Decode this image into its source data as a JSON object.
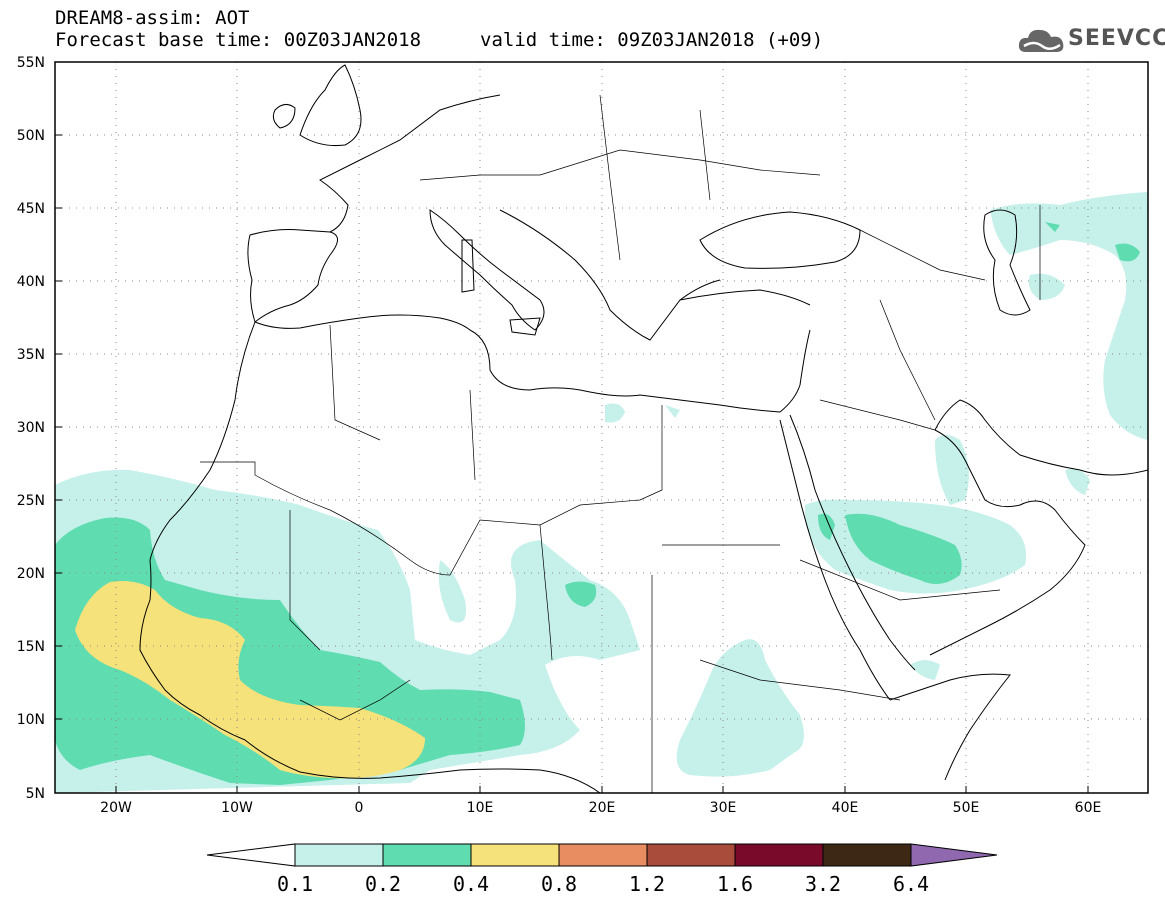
{
  "title": {
    "line1": "DREAM8-assim: AOT",
    "line2_left": "Forecast base time: 00Z03JAN2018",
    "line2_right": "valid time: 09Z03JAN2018 (+09)"
  },
  "logo": {
    "text": "SEEVCCC",
    "icon": "cloud-logo-icon"
  },
  "map": {
    "variable": "AOT",
    "lat_labels": [
      "55N",
      "50N",
      "45N",
      "40N",
      "35N",
      "30N",
      "25N",
      "20N",
      "15N",
      "10N",
      "5N"
    ],
    "lon_labels": [
      "20W",
      "10W",
      "0",
      "10E",
      "20E",
      "30E",
      "40E",
      "50E",
      "60E"
    ],
    "lon_range": [
      -25,
      65
    ],
    "lat_range": [
      5,
      55
    ],
    "grid": "dotted"
  },
  "colorbar": {
    "labels": [
      "0.1",
      "0.2",
      "0.4",
      "0.8",
      "1.2",
      "1.6",
      "3.2",
      "6.4"
    ],
    "colors": [
      "#ffffff",
      "#c6f0ea",
      "#5fdcb0",
      "#f5e27a",
      "#e88d62",
      "#a94c3c",
      "#7a0a2a",
      "#3d2816",
      "#8f68b0"
    ]
  }
}
